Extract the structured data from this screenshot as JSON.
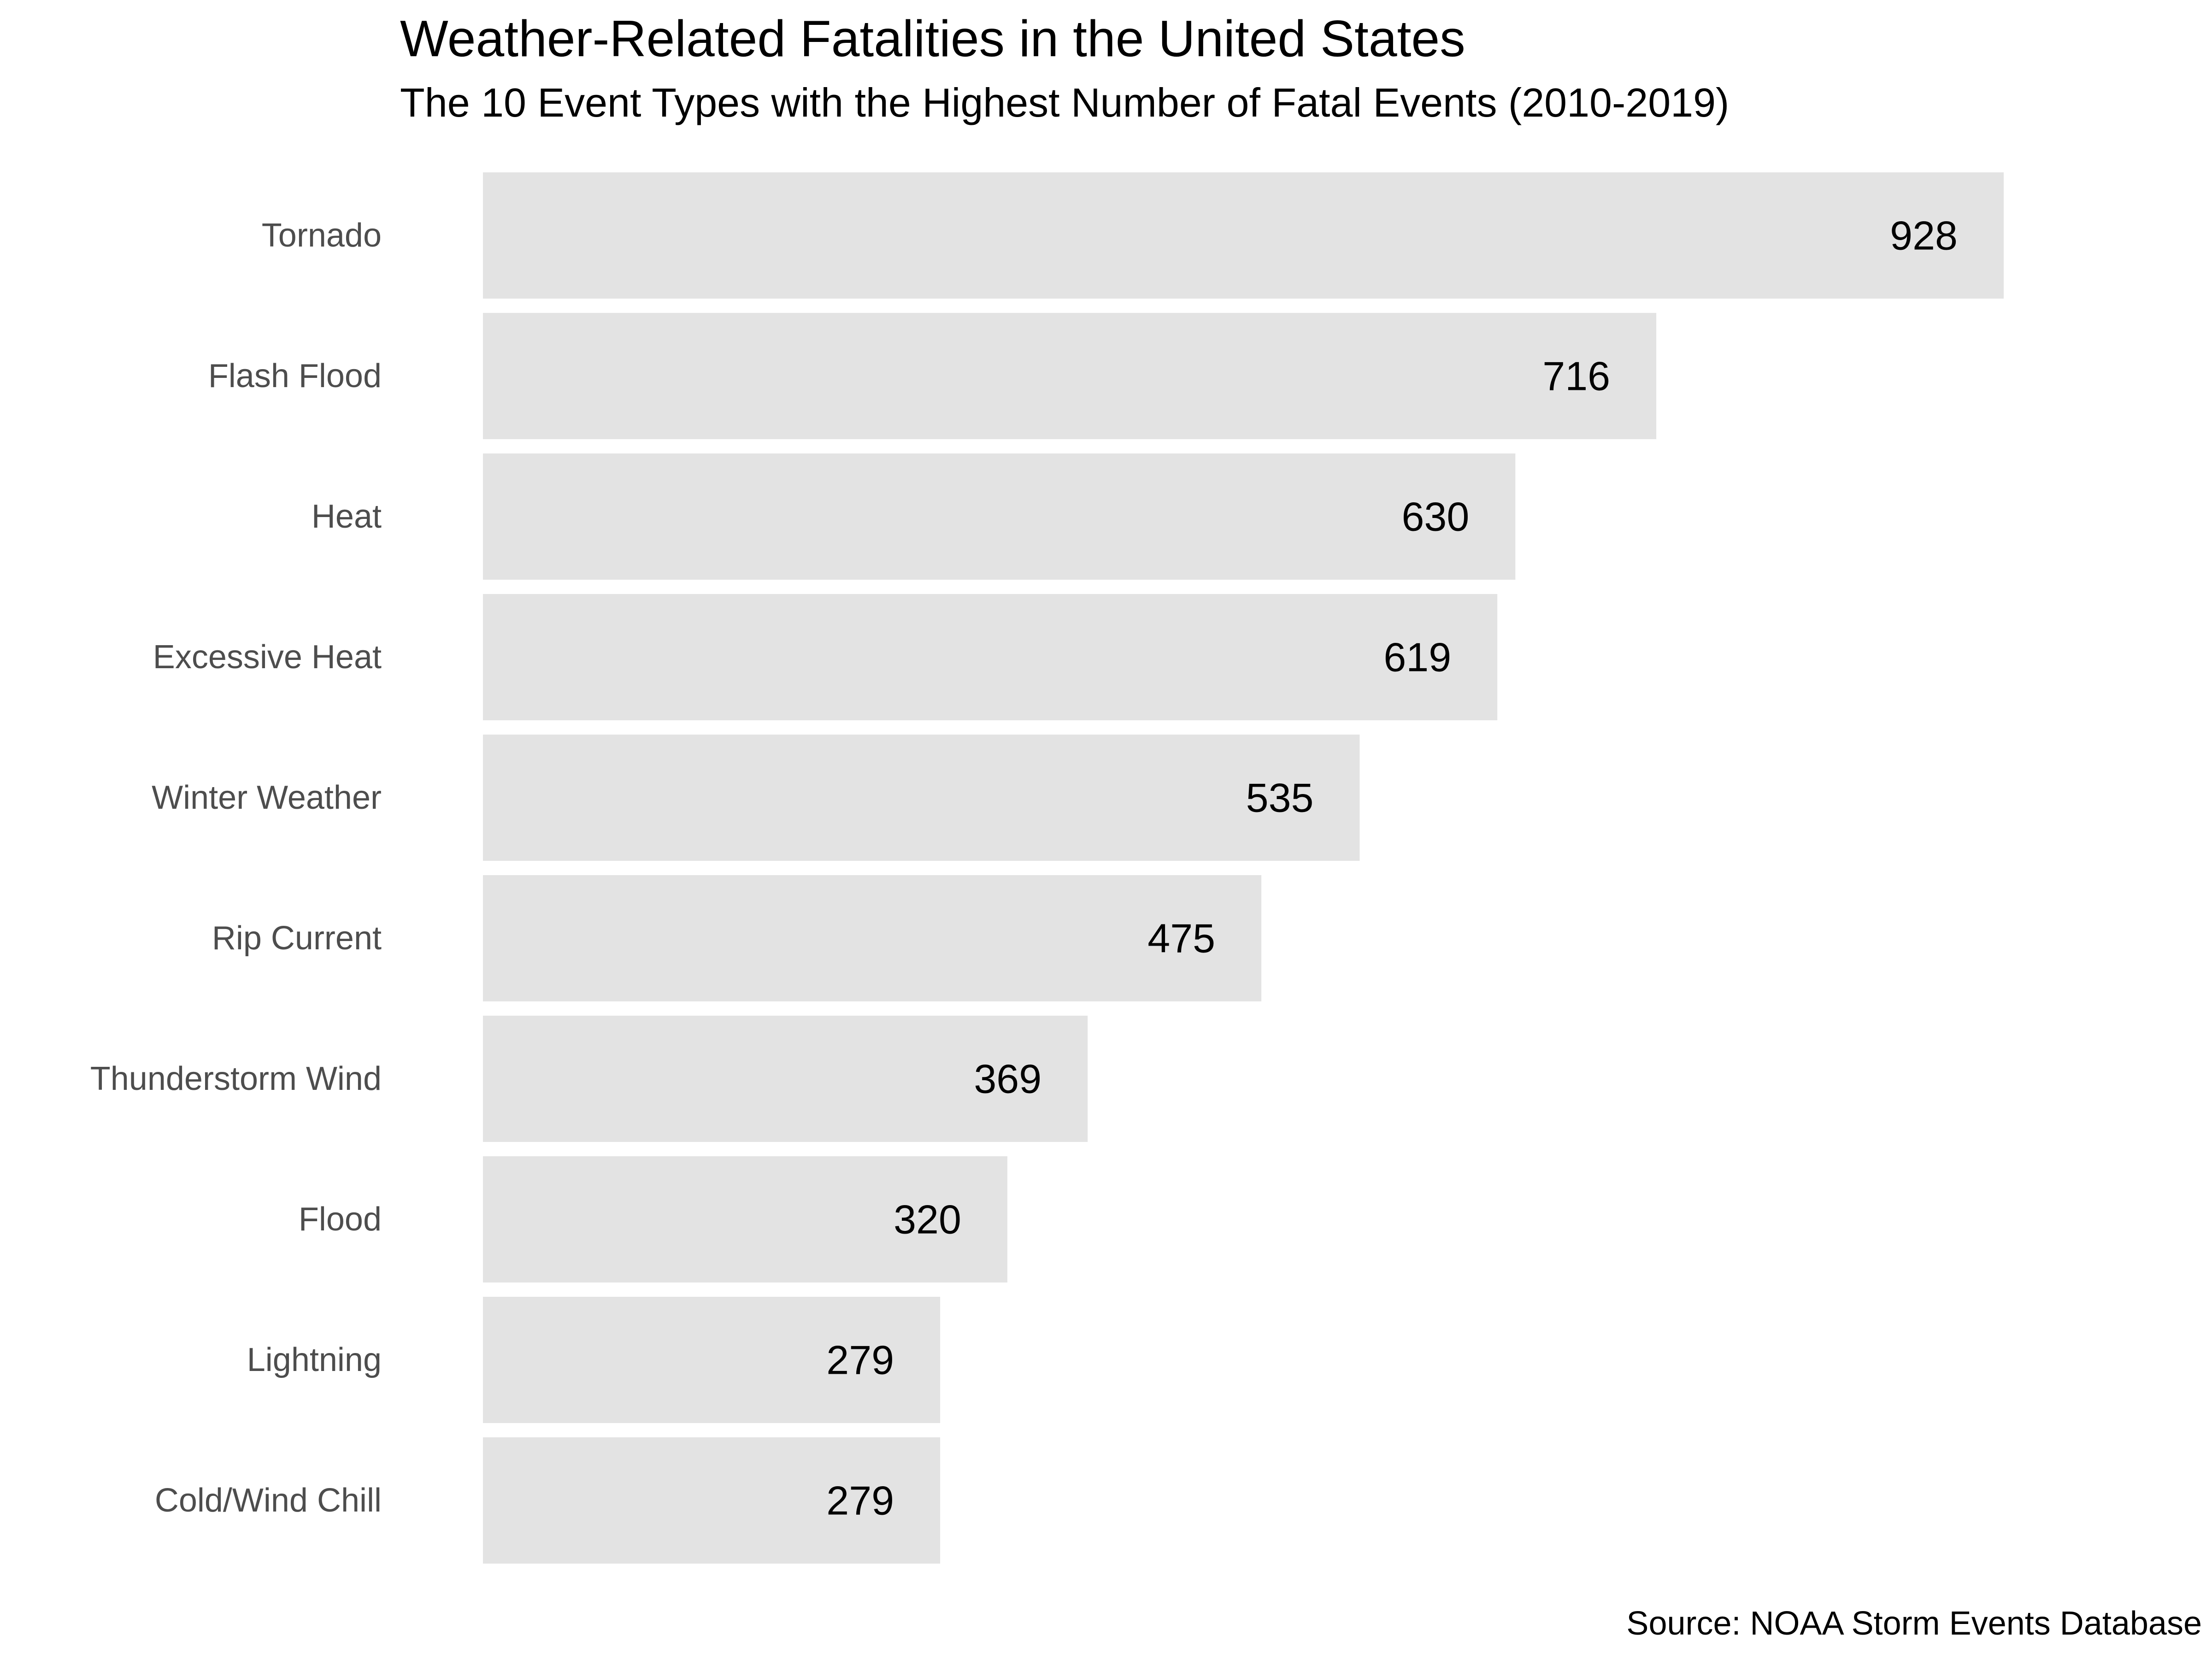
{
  "chart_data": {
    "type": "bar",
    "orientation": "horizontal",
    "title": "Weather-Related Fatalities in the United States",
    "subtitle": "The 10 Event Types with the Highest Number of Fatal Events (2010-2019)",
    "caption": "Source: NOAA Storm Events Database",
    "xlabel": "",
    "ylabel": "",
    "categories": [
      "Tornado",
      "Flash Flood",
      "Heat",
      "Excessive Heat",
      "Winter Weather",
      "Rip Current",
      "Thunderstorm Wind",
      "Flood",
      "Lightning",
      "Cold/Wind Chill"
    ],
    "values": [
      928,
      716,
      630,
      619,
      535,
      475,
      369,
      320,
      279,
      279
    ],
    "value_labels": [
      "928",
      "716",
      "630",
      "619",
      "535",
      "475",
      "369",
      "320",
      "279",
      "279"
    ],
    "xlim": [
      0,
      928
    ],
    "grid": false,
    "legend": "none",
    "colors": {
      "bar": "#e3e3e3",
      "category_text": "#4d4d4d",
      "value_text": "#000000",
      "title_text": "#000000"
    }
  }
}
